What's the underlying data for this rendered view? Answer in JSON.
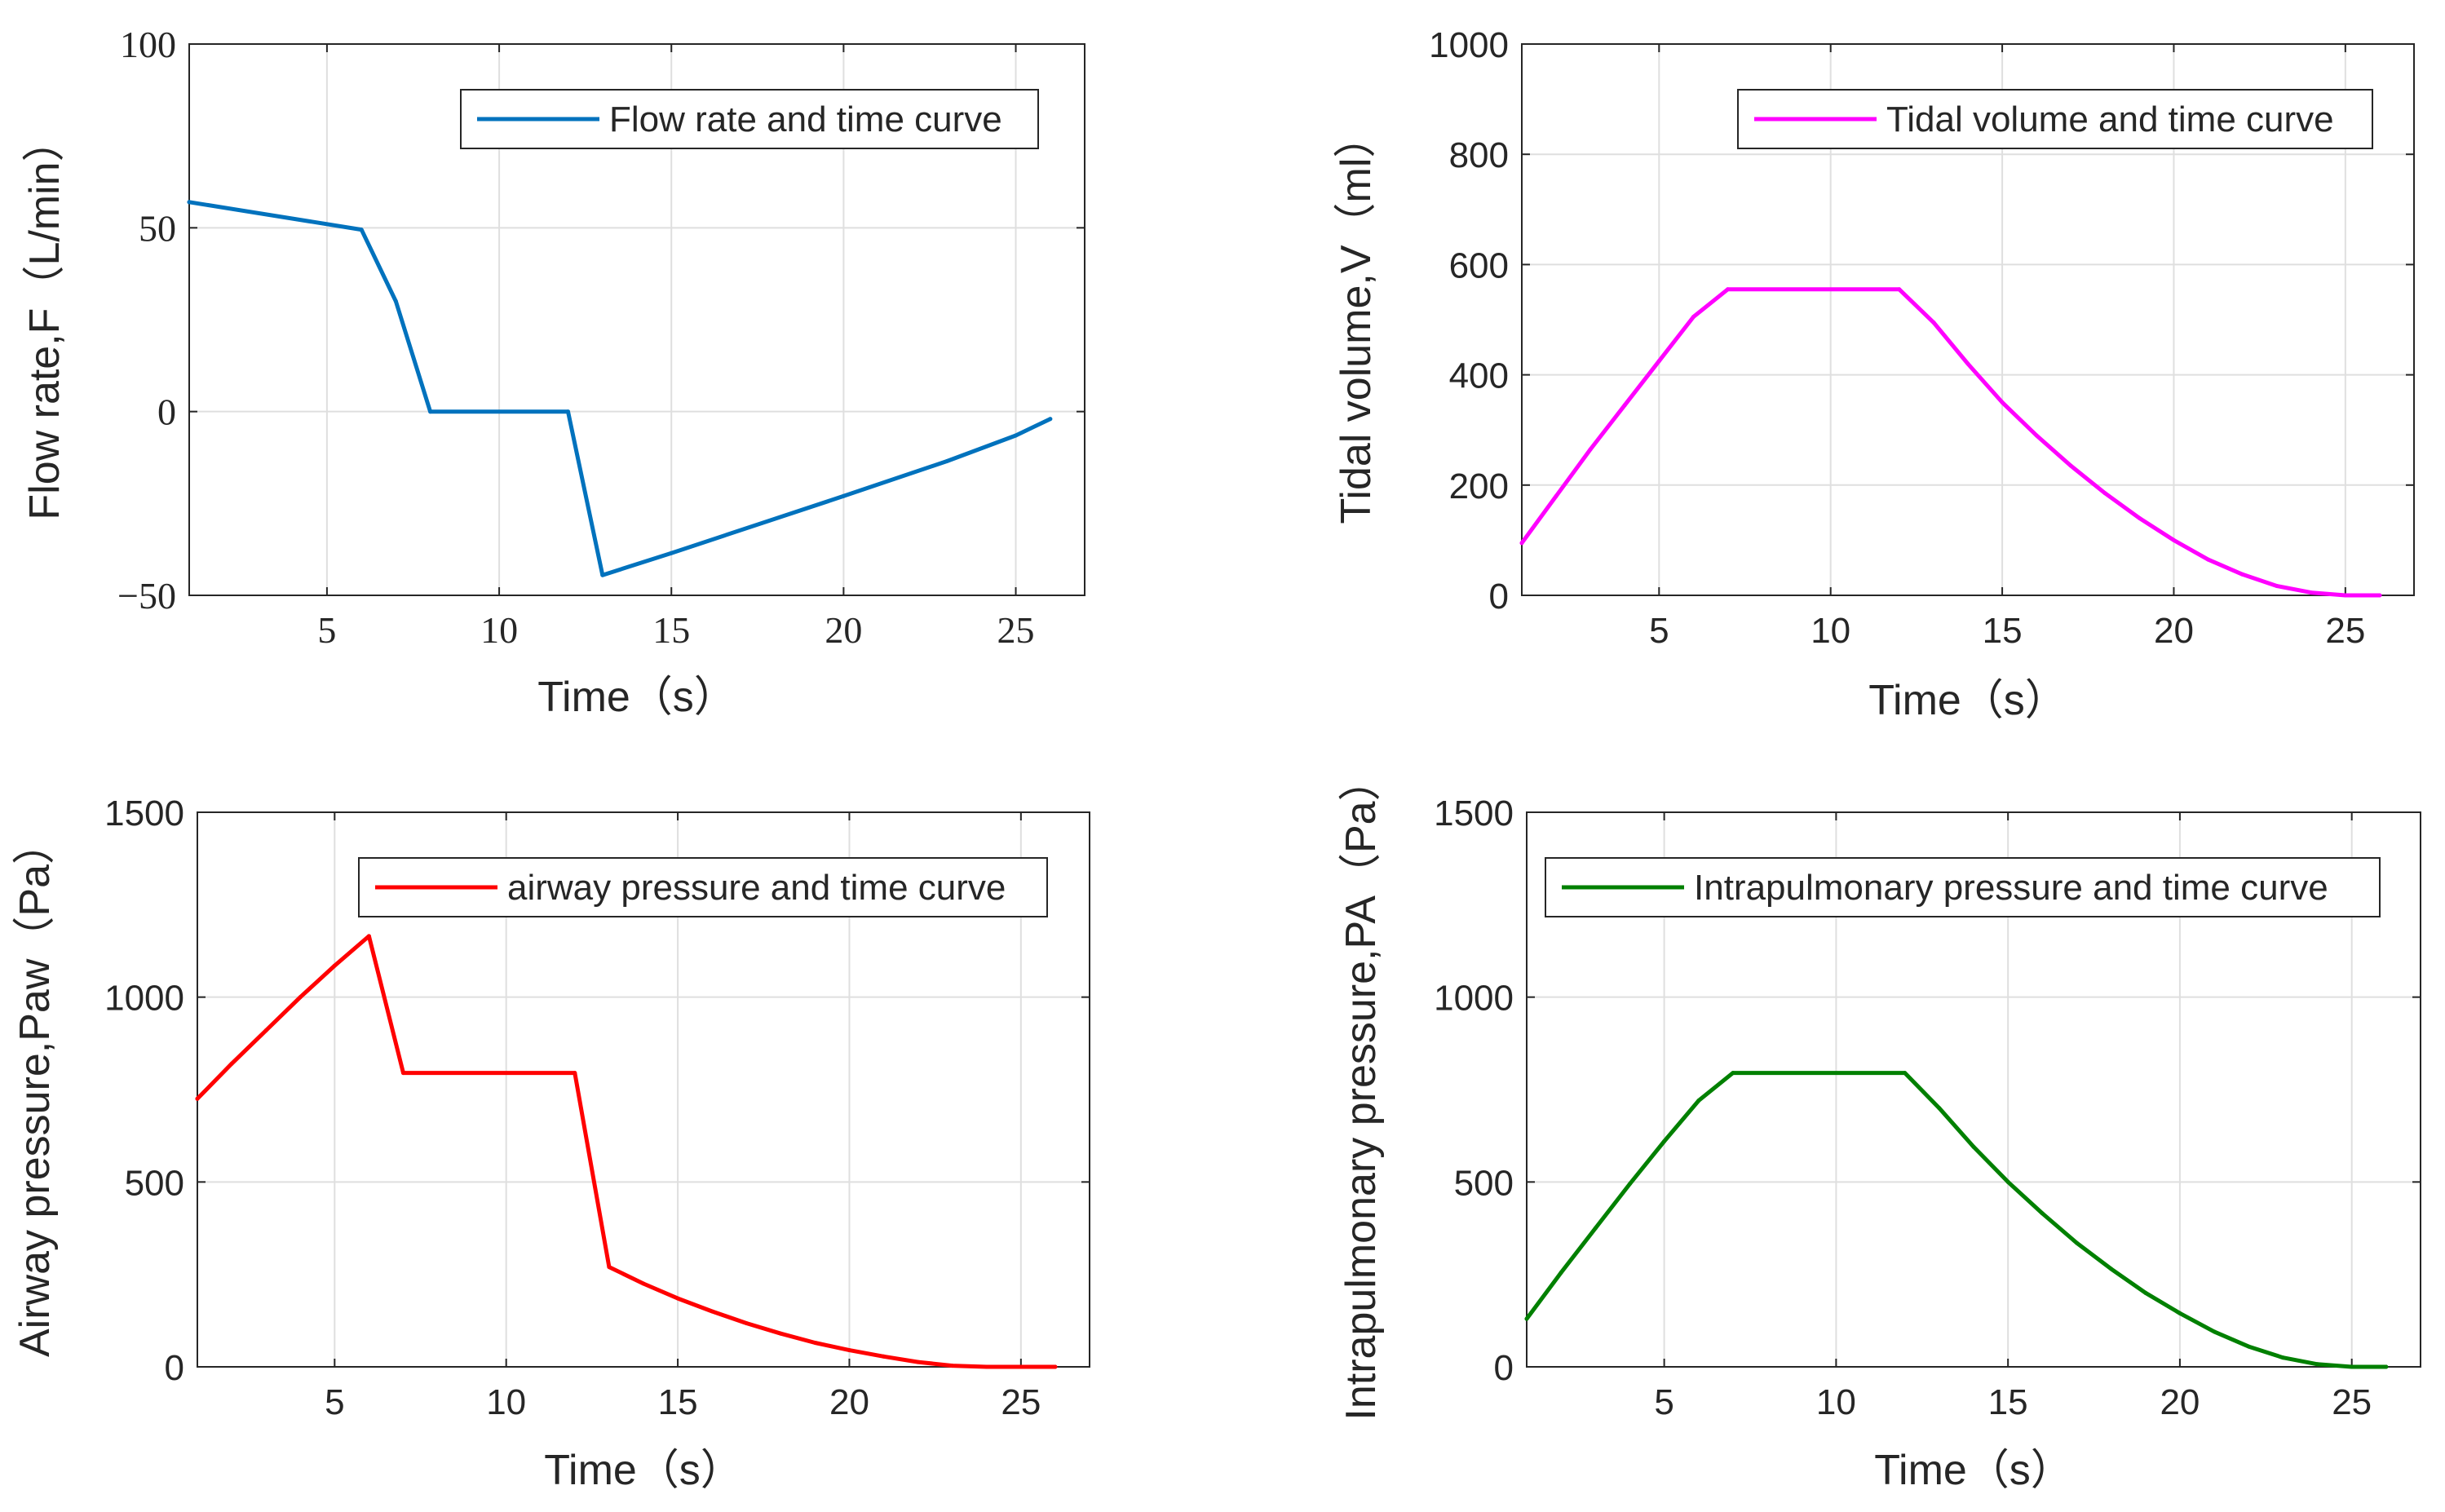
{
  "figure": {
    "background": "#ffffff",
    "axis_color": "#262626",
    "grid_color": "#dfdfdf"
  },
  "chart_data": [
    {
      "type": "line",
      "name": "flow",
      "title": "",
      "xlabel": "Time（s）",
      "ylabel": "Flow rate,F（L/min）",
      "xlim": [
        1,
        27
      ],
      "ylim": [
        -50,
        100
      ],
      "xticks": [
        5,
        10,
        15,
        20,
        25
      ],
      "yticks": [
        -50,
        0,
        50,
        100
      ],
      "xtick_labels": [
        "5",
        "10",
        "15",
        "20",
        "25"
      ],
      "ytick_labels": [
        "−50",
        "0",
        "50",
        "100"
      ],
      "grid": true,
      "legend_position": "top-right",
      "series": [
        {
          "name": "Flow rate and time curve",
          "color": "#0072BD",
          "x": [
            1,
            6,
            7,
            8,
            12,
            13,
            15,
            20,
            23,
            25,
            26
          ],
          "y": [
            57,
            49.5,
            30,
            0,
            0,
            -44.5,
            -38.5,
            -23,
            -13.5,
            -6.5,
            -2
          ]
        }
      ]
    },
    {
      "type": "line",
      "name": "volume",
      "title": "",
      "xlabel": "Time（s）",
      "ylabel": "Tidal volume,V（ml）",
      "xlim": [
        1,
        27
      ],
      "ylim": [
        0,
        1000
      ],
      "xticks": [
        5,
        10,
        15,
        20,
        25
      ],
      "yticks": [
        0,
        200,
        400,
        600,
        800,
        1000
      ],
      "xtick_labels": [
        "5",
        "10",
        "15",
        "20",
        "25"
      ],
      "ytick_labels": [
        "0",
        "200",
        "400",
        "600",
        "800",
        "1000"
      ],
      "grid": true,
      "legend_position": "top-right",
      "series": [
        {
          "name": "Tidal volume and time curve",
          "color": "#FF00FF",
          "x": [
            1,
            2,
            3,
            4,
            5,
            6,
            7,
            12,
            13,
            14,
            15,
            16,
            17,
            18,
            19,
            20,
            21,
            22,
            23,
            24,
            25,
            26
          ],
          "y": [
            95,
            180,
            265,
            345,
            425,
            505,
            555,
            555,
            495,
            420,
            350,
            290,
            235,
            185,
            140,
            100,
            65,
            38,
            17,
            5,
            0,
            0
          ]
        }
      ]
    },
    {
      "type": "line",
      "name": "airway",
      "title": "",
      "xlabel": "Time（s）",
      "ylabel": "Airway pressure,Paw（Pa）",
      "xlim": [
        1,
        27
      ],
      "ylim": [
        0,
        1500
      ],
      "xticks": [
        5,
        10,
        15,
        20,
        25
      ],
      "yticks": [
        0,
        500,
        1000,
        1500
      ],
      "xtick_labels": [
        "5",
        "10",
        "15",
        "20",
        "25"
      ],
      "ytick_labels": [
        "0",
        "500",
        "1000",
        "1500"
      ],
      "grid": true,
      "legend_position": "top-right",
      "series": [
        {
          "name": "airway pressure and time curve",
          "color": "#FF0000",
          "x": [
            1,
            2,
            3,
            4,
            5,
            6,
            7,
            12,
            13,
            14,
            15,
            16,
            17,
            18,
            19,
            20,
            21,
            22,
            23,
            24,
            25,
            26
          ],
          "y": [
            725,
            820,
            910,
            1000,
            1085,
            1165,
            795,
            795,
            270,
            225,
            185,
            150,
            118,
            90,
            65,
            45,
            28,
            13,
            3,
            0,
            0,
            0
          ]
        }
      ]
    },
    {
      "type": "line",
      "name": "intrapulmonary",
      "title": "",
      "xlabel": "Time（s）",
      "ylabel": "Intrapulmonary pressure,PA（Pa）",
      "xlim": [
        1,
        27
      ],
      "ylim": [
        0,
        1500
      ],
      "xticks": [
        5,
        10,
        15,
        20,
        25
      ],
      "yticks": [
        0,
        500,
        1000,
        1500
      ],
      "xtick_labels": [
        "5",
        "10",
        "15",
        "20",
        "25"
      ],
      "ytick_labels": [
        "0",
        "500",
        "1000",
        "1500"
      ],
      "grid": true,
      "legend_position": "top-right",
      "series": [
        {
          "name": "Intrapulmonary pressure and time curve",
          "color": "#008000",
          "x": [
            1,
            2,
            3,
            4,
            5,
            6,
            7,
            12,
            13,
            14,
            15,
            16,
            17,
            18,
            19,
            20,
            21,
            22,
            23,
            24,
            25,
            26
          ],
          "y": [
            130,
            255,
            375,
            495,
            610,
            720,
            795,
            795,
            700,
            595,
            500,
            415,
            335,
            265,
            200,
            145,
            95,
            55,
            25,
            7,
            0,
            0
          ]
        }
      ]
    }
  ]
}
